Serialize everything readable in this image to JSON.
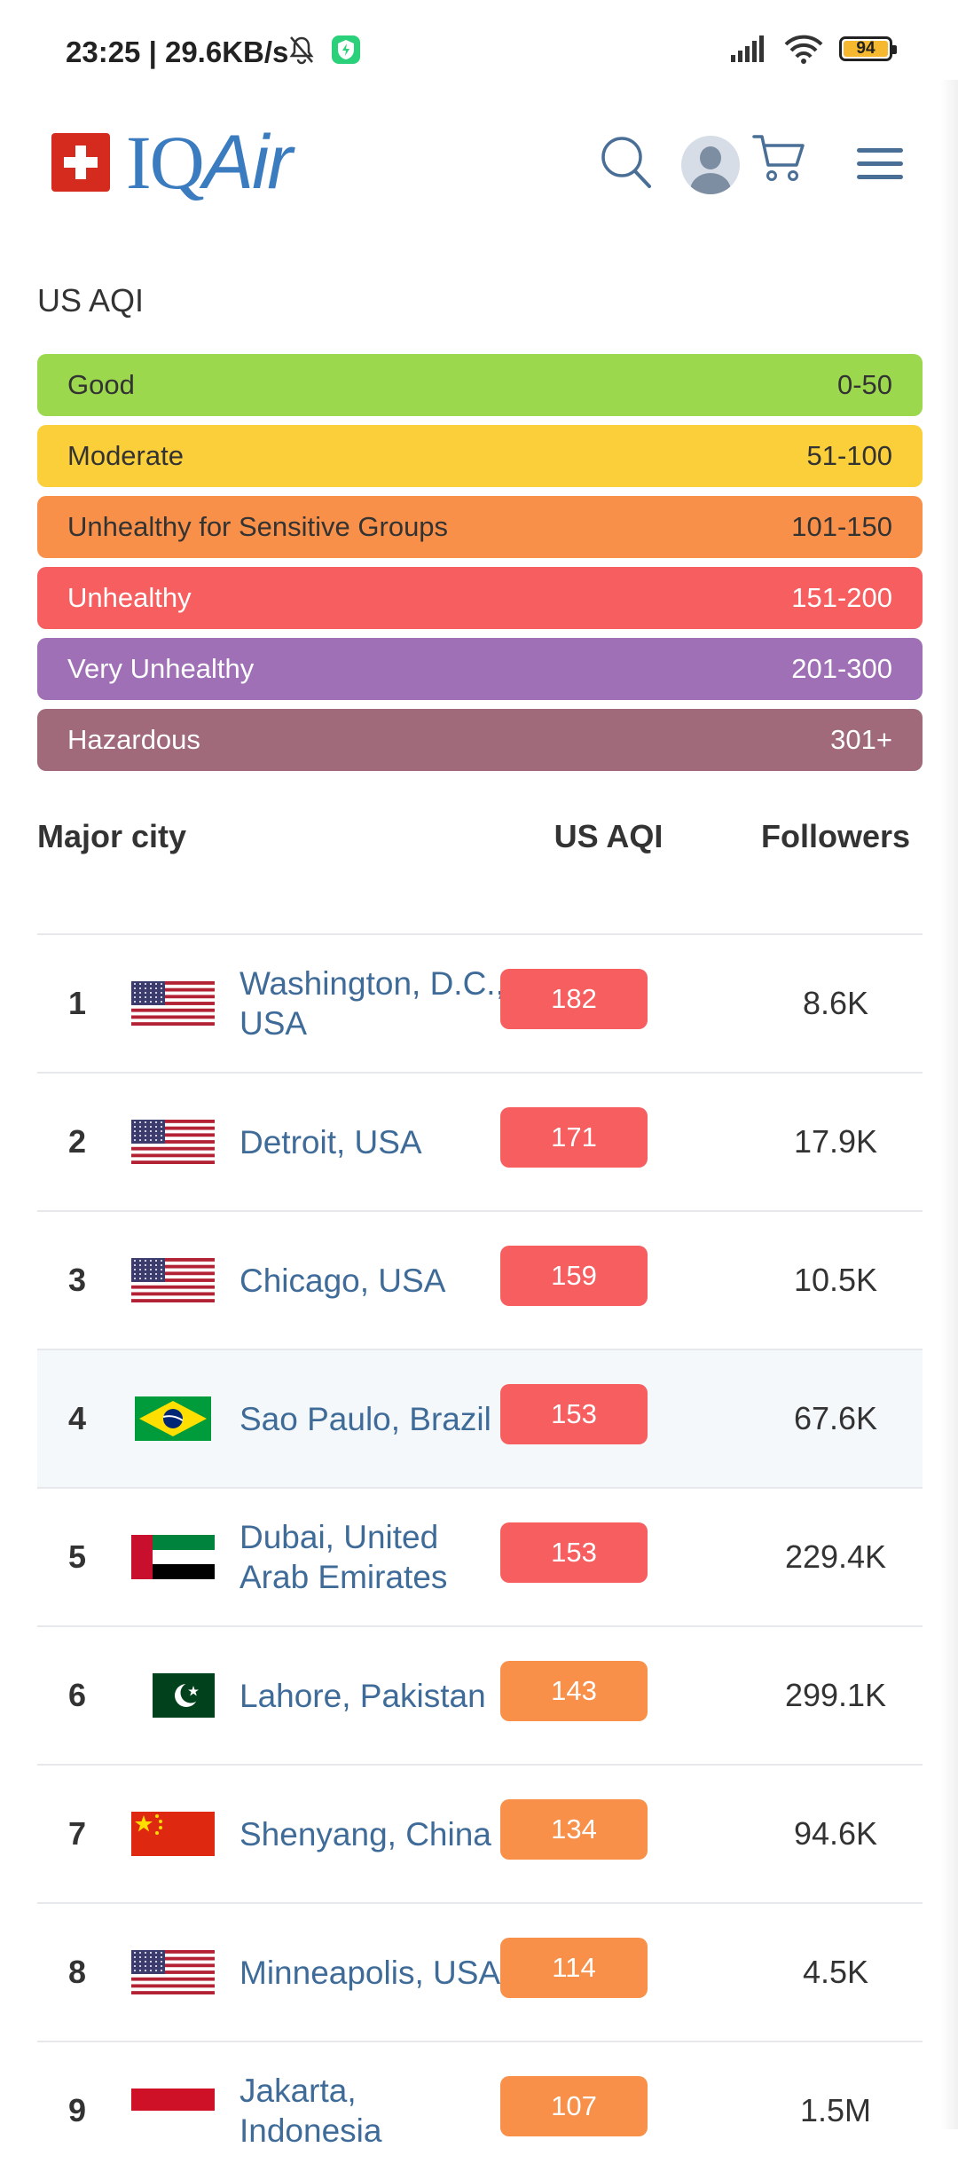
{
  "status_bar": {
    "time": "23:25 | 29.6KB/s",
    "battery": "94"
  },
  "header": {
    "logo_text_iq": "IQ",
    "logo_text_air": "Air"
  },
  "aqi_legend": {
    "title": "US AQI",
    "levels": [
      {
        "label": "Good",
        "range": "0-50",
        "bg": "#9cd84e",
        "fg": "#333333"
      },
      {
        "label": "Moderate",
        "range": "51-100",
        "bg": "#facf39",
        "fg": "#333333"
      },
      {
        "label": "Unhealthy for Sensitive Groups",
        "range": "101-150",
        "bg": "#f99049",
        "fg": "#333333"
      },
      {
        "label": "Unhealthy",
        "range": "151-200",
        "bg": "#f65e5f",
        "fg": "#ffffff"
      },
      {
        "label": "Very Unhealthy",
        "range": "201-300",
        "bg": "#a070b6",
        "fg": "#ffffff"
      },
      {
        "label": "Hazardous",
        "range": "301+",
        "bg": "#a06a7b",
        "fg": "#ffffff"
      }
    ]
  },
  "table": {
    "headers": {
      "city": "Major city",
      "aqi": "US AQI",
      "followers": "Followers"
    },
    "rows": [
      {
        "rank": "1",
        "flag": "usa-flag-icon",
        "city": "Washington, D.C., USA",
        "aqi": "182",
        "aqi_color": "#f65e5f",
        "followers": "8.6K"
      },
      {
        "rank": "2",
        "flag": "usa-flag-icon",
        "city": "Detroit, USA",
        "aqi": "171",
        "aqi_color": "#f65e5f",
        "followers": "17.9K"
      },
      {
        "rank": "3",
        "flag": "usa-flag-icon",
        "city": "Chicago, USA",
        "aqi": "159",
        "aqi_color": "#f65e5f",
        "followers": "10.5K"
      },
      {
        "rank": "4",
        "flag": "brazil-flag-icon",
        "city": "Sao Paulo, Brazil",
        "aqi": "153",
        "aqi_color": "#f65e5f",
        "followers": "67.6K"
      },
      {
        "rank": "5",
        "flag": "uae-flag-icon",
        "city": "Dubai, United Arab Emirates",
        "aqi": "153",
        "aqi_color": "#f65e5f",
        "followers": "229.4K"
      },
      {
        "rank": "6",
        "flag": "pakistan-flag-icon",
        "city": "Lahore, Pakistan",
        "aqi": "143",
        "aqi_color": "#f99049",
        "followers": "299.1K"
      },
      {
        "rank": "7",
        "flag": "china-flag-icon",
        "city": "Shenyang, China",
        "aqi": "134",
        "aqi_color": "#f99049",
        "followers": "94.6K"
      },
      {
        "rank": "8",
        "flag": "usa-flag-icon",
        "city": "Minneapolis, USA",
        "aqi": "114",
        "aqi_color": "#f99049",
        "followers": "4.5K"
      },
      {
        "rank": "9",
        "flag": "indonesia-flag-icon",
        "city": "Jakarta, Indonesia",
        "aqi": "107",
        "aqi_color": "#f99049",
        "followers": "1.5M"
      }
    ]
  }
}
